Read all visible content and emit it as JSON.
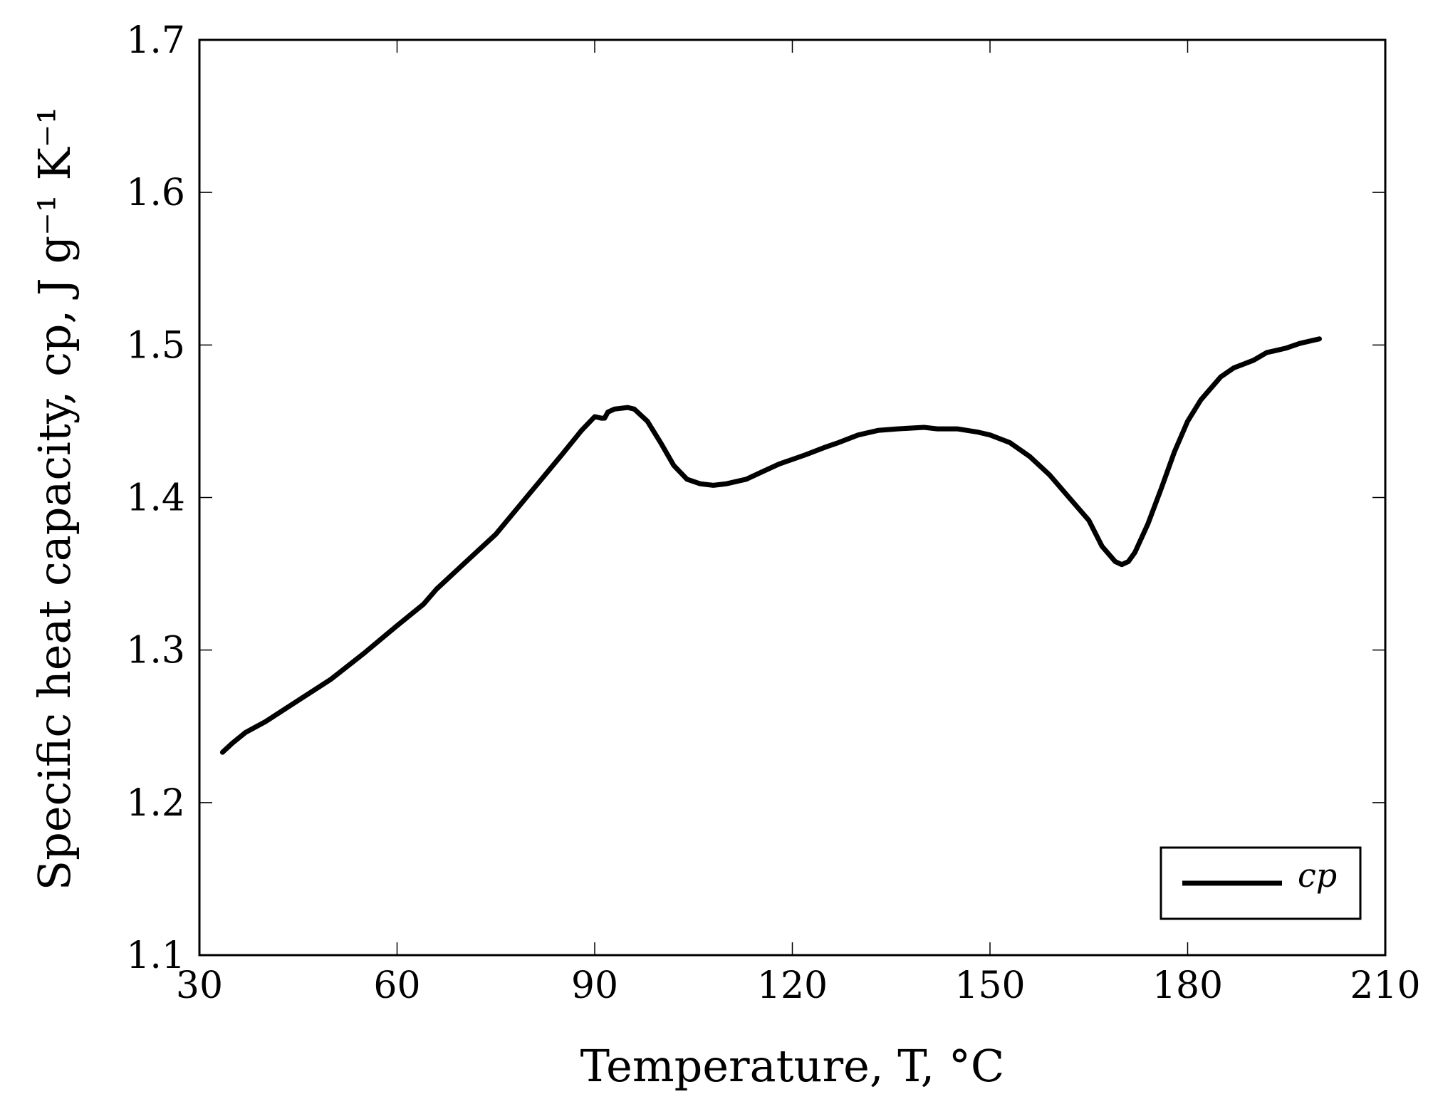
{
  "chart_data": {
    "type": "line",
    "xlabel": "Temperature, T, °C",
    "ylabel": "Specific heat capacity, cp, J g⁻¹ K⁻¹",
    "xlim": [
      30,
      210
    ],
    "ylim": [
      1.1,
      1.7
    ],
    "xticks": [
      "30",
      "60",
      "90",
      "120",
      "150",
      "180",
      "210"
    ],
    "yticks": [
      "1.1",
      "1.2",
      "1.3",
      "1.4",
      "1.5",
      "1.6",
      "1.7"
    ],
    "grid": false,
    "legend_position": "bottom-right",
    "series": [
      {
        "name": "cp",
        "color": "#000000",
        "x": [
          33.5,
          35,
          37,
          40,
          45,
          50,
          55,
          60,
          64,
          66,
          70,
          75,
          80,
          85,
          88,
          90,
          91,
          91.5,
          92,
          93,
          95,
          96,
          98,
          100,
          102,
          104,
          106,
          108,
          110,
          113,
          115,
          118,
          120,
          122,
          125,
          127,
          130,
          133,
          136,
          140,
          142,
          145,
          148,
          150,
          153,
          156,
          159,
          162,
          165,
          167,
          169,
          170,
          171,
          172,
          174,
          176,
          178,
          180,
          182,
          185,
          187,
          190,
          192,
          193,
          195,
          197,
          199,
          200
        ],
        "y": [
          1.233,
          1.239,
          1.246,
          1.253,
          1.267,
          1.281,
          1.298,
          1.316,
          1.33,
          1.34,
          1.356,
          1.376,
          1.402,
          1.428,
          1.444,
          1.453,
          1.452,
          1.452,
          1.456,
          1.458,
          1.459,
          1.458,
          1.45,
          1.436,
          1.421,
          1.412,
          1.409,
          1.408,
          1.409,
          1.412,
          1.416,
          1.422,
          1.425,
          1.428,
          1.433,
          1.436,
          1.441,
          1.444,
          1.445,
          1.446,
          1.445,
          1.445,
          1.443,
          1.441,
          1.436,
          1.427,
          1.415,
          1.4,
          1.385,
          1.368,
          1.358,
          1.356,
          1.358,
          1.364,
          1.383,
          1.406,
          1.43,
          1.45,
          1.464,
          1.479,
          1.485,
          1.49,
          1.495,
          1.496,
          1.498,
          1.501,
          1.503,
          1.504
        ]
      }
    ]
  }
}
